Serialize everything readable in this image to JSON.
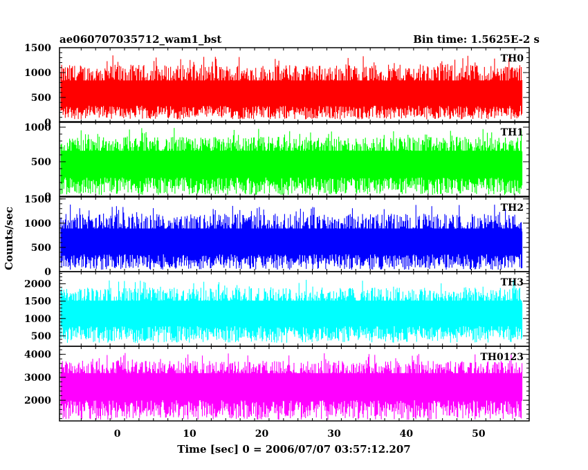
{
  "chart_data": {
    "type": "line",
    "title_left": "ae060707035712_wam1_bst",
    "title_right": "Bin time: 1.5625E-2 s",
    "ylabel": "Counts/sec",
    "xlabel": "Time [sec] 0 = 2006/07/07 03:57:12.207",
    "xlim": [
      -8,
      57
    ],
    "x_ticks": [
      0,
      10,
      20,
      30,
      40,
      50
    ],
    "data_range": [
      -7.8,
      56.0
    ],
    "bin_time_s": 0.015625,
    "panels": [
      {
        "name": "TH0",
        "color": "#ff0000",
        "ylim": [
          0,
          1500
        ],
        "y_ticks": [
          0,
          500,
          1000,
          1500
        ],
        "mean": 560,
        "floor": 60,
        "peak": 1500
      },
      {
        "name": "TH1",
        "color": "#00ff00",
        "ylim": [
          0,
          1080
        ],
        "y_ticks": [
          0,
          500,
          1000
        ],
        "mean": 480,
        "floor": 20,
        "peak": 1080
      },
      {
        "name": "TH2",
        "color": "#0000ff",
        "ylim": [
          0,
          1540
        ],
        "y_ticks": [
          0,
          500,
          1000,
          1500
        ],
        "mean": 620,
        "floor": 40,
        "peak": 1520
      },
      {
        "name": "TH3",
        "color": "#00ffff",
        "ylim": [
          200,
          2350
        ],
        "y_ticks": [
          500,
          1000,
          1500,
          2000
        ],
        "mean": 1180,
        "floor": 300,
        "peak": 2300
      },
      {
        "name": "TH0123",
        "color": "#ff00ff",
        "ylim": [
          1100,
          4350
        ],
        "y_ticks": [
          2000,
          3000,
          4000
        ],
        "mean": 2700,
        "floor": 1150,
        "peak": 4300
      }
    ]
  }
}
